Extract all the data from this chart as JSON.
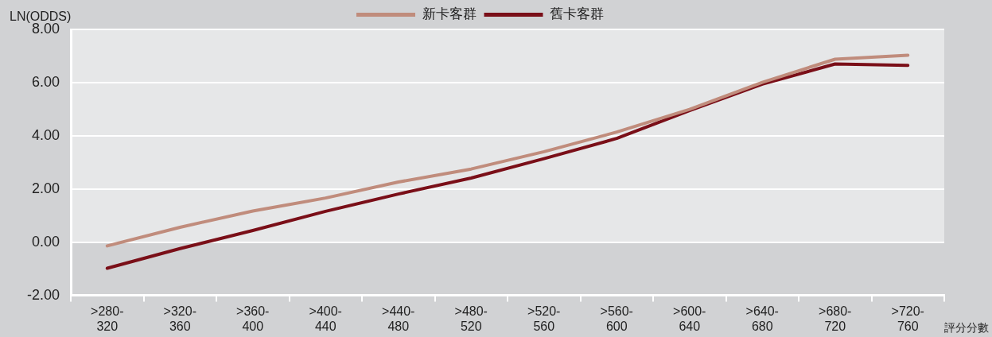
{
  "chart_data": {
    "type": "line",
    "ylabel": "LN(ODDS)",
    "xlabel": "評分分數",
    "categories": [
      ">280-320",
      ">320-360",
      ">360-400",
      ">400-440",
      ">440-480",
      ">480-520",
      ">520-560",
      ">560-600",
      ">600-640",
      ">640-680",
      ">680-720",
      ">720-760"
    ],
    "series": [
      {
        "name": "新卡客群",
        "color": "#c08c7c",
        "values": [
          -0.14,
          0.56,
          1.17,
          1.66,
          2.26,
          2.75,
          3.4,
          4.14,
          4.99,
          6.01,
          6.88,
          7.03
        ]
      },
      {
        "name": "舊卡客群",
        "color": "#7a0f18",
        "values": [
          -0.98,
          -0.24,
          0.44,
          1.16,
          1.81,
          2.41,
          3.14,
          3.9,
          4.95,
          5.94,
          6.7,
          6.65
        ]
      }
    ],
    "ylim": [
      -2,
      8
    ],
    "yticks": [
      {
        "value": -2,
        "label": "-2.00"
      },
      {
        "value": 0,
        "label": "0.00"
      },
      {
        "value": 2,
        "label": "2.00"
      },
      {
        "value": 4,
        "label": "4.00"
      },
      {
        "value": 6,
        "label": "6.00"
      },
      {
        "value": 8,
        "label": "8.00"
      }
    ],
    "bands": [
      {
        "axis": "y",
        "from": -2,
        "to": 0,
        "color": "#d1d2d4"
      }
    ],
    "grid": "y",
    "legend": "top",
    "marker": "none",
    "line_style": "solid"
  }
}
